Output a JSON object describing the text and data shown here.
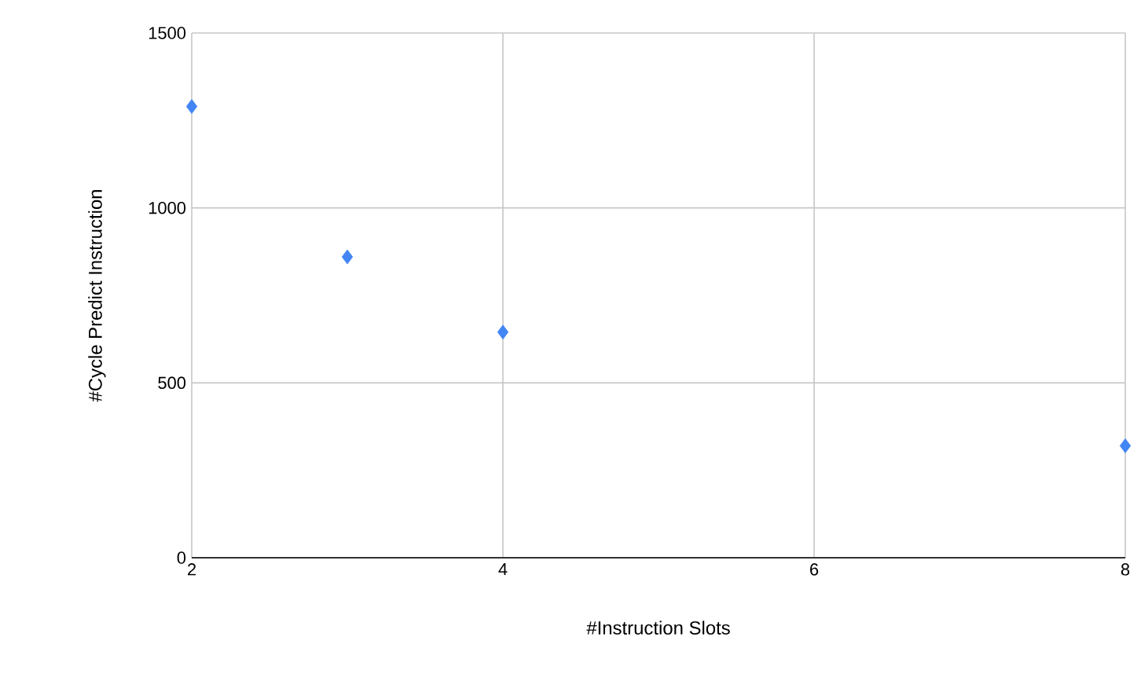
{
  "chart_data": {
    "type": "scatter",
    "xlabel": "#Instruction Slots",
    "ylabel": "#Cycle Predict Instruction",
    "x": [
      2,
      3,
      4,
      8
    ],
    "values": [
      1290,
      860,
      645,
      320
    ],
    "color": "#4285f4",
    "marker": "diamond",
    "grid": true,
    "xlim": [
      2,
      8
    ],
    "xticks": [
      2,
      4,
      6,
      8
    ],
    "ylim": [
      0,
      1500
    ],
    "yticks": [
      0,
      500,
      1000,
      1500
    ]
  }
}
